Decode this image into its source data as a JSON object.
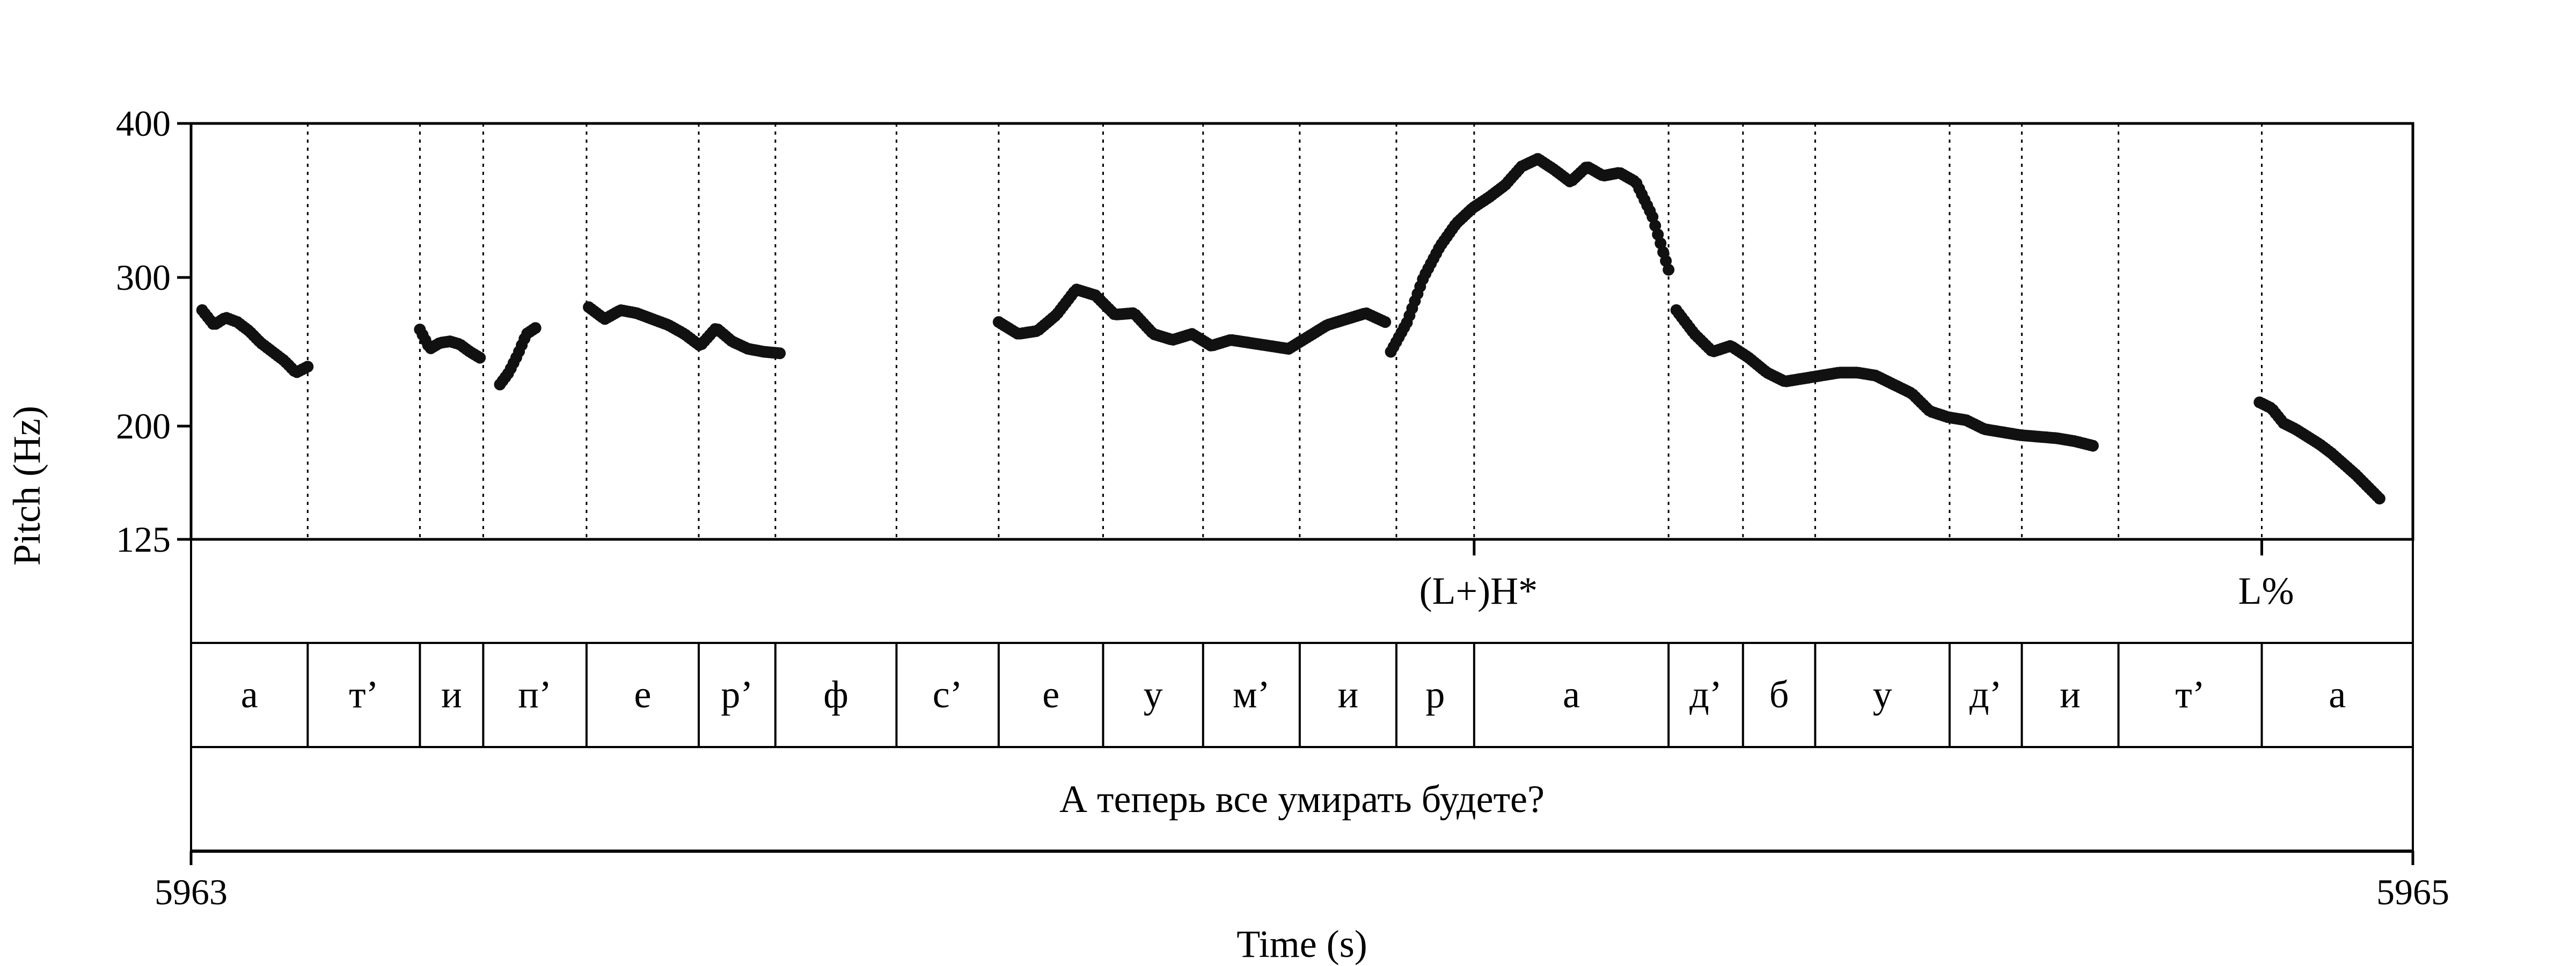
{
  "chart_data": {
    "type": "scatter",
    "title": "",
    "xlabel": "Time (s)",
    "ylabel": "Pitch (Hz)",
    "xlim": [
      5963,
      5965
    ],
    "ylim": [
      125,
      400
    ],
    "x_ticks": [
      "5963",
      "5965"
    ],
    "y_ticks": [
      "125",
      "200",
      "300",
      "400"
    ],
    "grid": false,
    "point_color": "#111111",
    "boundaries": [
      5963.105,
      5963.206,
      5963.263,
      5963.356,
      5963.457,
      5963.526,
      5963.635,
      5963.727,
      5963.821,
      5963.911,
      5963.998,
      5964.085,
      5964.155,
      5964.33,
      5964.397,
      5964.462,
      5964.583,
      5964.648,
      5964.735,
      5964.864
    ],
    "tones": [
      {
        "label": "(L+)H*",
        "time": 5964.155
      },
      {
        "label": "L%",
        "time": 5964.864
      }
    ],
    "segments": [
      {
        "label": "а",
        "start": 5963.0,
        "end": 5963.105
      },
      {
        "label": "т’",
        "start": 5963.105,
        "end": 5963.206
      },
      {
        "label": "и",
        "start": 5963.206,
        "end": 5963.263
      },
      {
        "label": "п’",
        "start": 5963.263,
        "end": 5963.356
      },
      {
        "label": "е",
        "start": 5963.356,
        "end": 5963.457
      },
      {
        "label": "р’",
        "start": 5963.457,
        "end": 5963.526
      },
      {
        "label": "ф",
        "start": 5963.526,
        "end": 5963.635
      },
      {
        "label": "с’",
        "start": 5963.635,
        "end": 5963.727
      },
      {
        "label": "е",
        "start": 5963.727,
        "end": 5963.821
      },
      {
        "label": "у",
        "start": 5963.821,
        "end": 5963.911
      },
      {
        "label": "м’",
        "start": 5963.911,
        "end": 5963.998
      },
      {
        "label": "и",
        "start": 5963.998,
        "end": 5964.085
      },
      {
        "label": "р",
        "start": 5964.085,
        "end": 5964.155
      },
      {
        "label": "а",
        "start": 5964.155,
        "end": 5964.33
      },
      {
        "label": "д’",
        "start": 5964.33,
        "end": 5964.397
      },
      {
        "label": "б",
        "start": 5964.397,
        "end": 5964.462
      },
      {
        "label": "у",
        "start": 5964.462,
        "end": 5964.583
      },
      {
        "label": "д’",
        "start": 5964.583,
        "end": 5964.648
      },
      {
        "label": "и",
        "start": 5964.648,
        "end": 5964.735
      },
      {
        "label": "т’",
        "start": 5964.735,
        "end": 5964.864
      },
      {
        "label": "а",
        "start": 5964.864,
        "end": 5965.0
      }
    ],
    "utterance": "А теперь все умирать будете?",
    "pitch_contours": [
      {
        "start": 5963.01,
        "end": 5963.105,
        "hz": [
          278,
          268,
          273,
          270,
          264,
          256,
          250,
          244,
          236,
          240
        ]
      },
      {
        "start": 5963.206,
        "end": 5963.26,
        "hz": [
          265,
          252,
          256,
          257,
          255,
          250,
          246
        ]
      },
      {
        "start": 5963.278,
        "end": 5963.31,
        "hz": [
          228,
          236,
          248,
          262,
          266
        ]
      },
      {
        "start": 5963.358,
        "end": 5963.53,
        "hz": [
          280,
          272,
          278,
          276,
          272,
          268,
          262,
          254,
          266,
          257,
          252,
          250,
          249
        ]
      },
      {
        "start": 5963.727,
        "end": 5964.075,
        "hz": [
          270,
          262,
          264,
          275,
          292,
          288,
          275,
          276,
          262,
          258,
          262,
          254,
          258,
          256,
          254,
          252,
          260,
          268,
          272,
          276,
          270
        ]
      },
      {
        "start": 5964.08,
        "end": 5964.33,
        "hz": [
          250,
          270,
          300,
          320,
          335,
          345,
          352,
          360,
          372,
          377,
          370,
          362,
          372,
          366,
          368,
          362,
          340,
          305
        ]
      },
      {
        "start": 5964.337,
        "end": 5964.712,
        "hz": [
          278,
          262,
          250,
          254,
          246,
          236,
          230,
          232,
          234,
          236,
          236,
          234,
          228,
          222,
          210,
          206,
          204,
          198,
          196,
          194,
          193,
          192,
          190,
          187
        ]
      },
      {
        "start": 5964.862,
        "end": 5964.97,
        "hz": [
          216,
          212,
          202,
          198,
          193,
          188,
          182,
          175,
          168,
          160,
          152
        ]
      }
    ]
  }
}
